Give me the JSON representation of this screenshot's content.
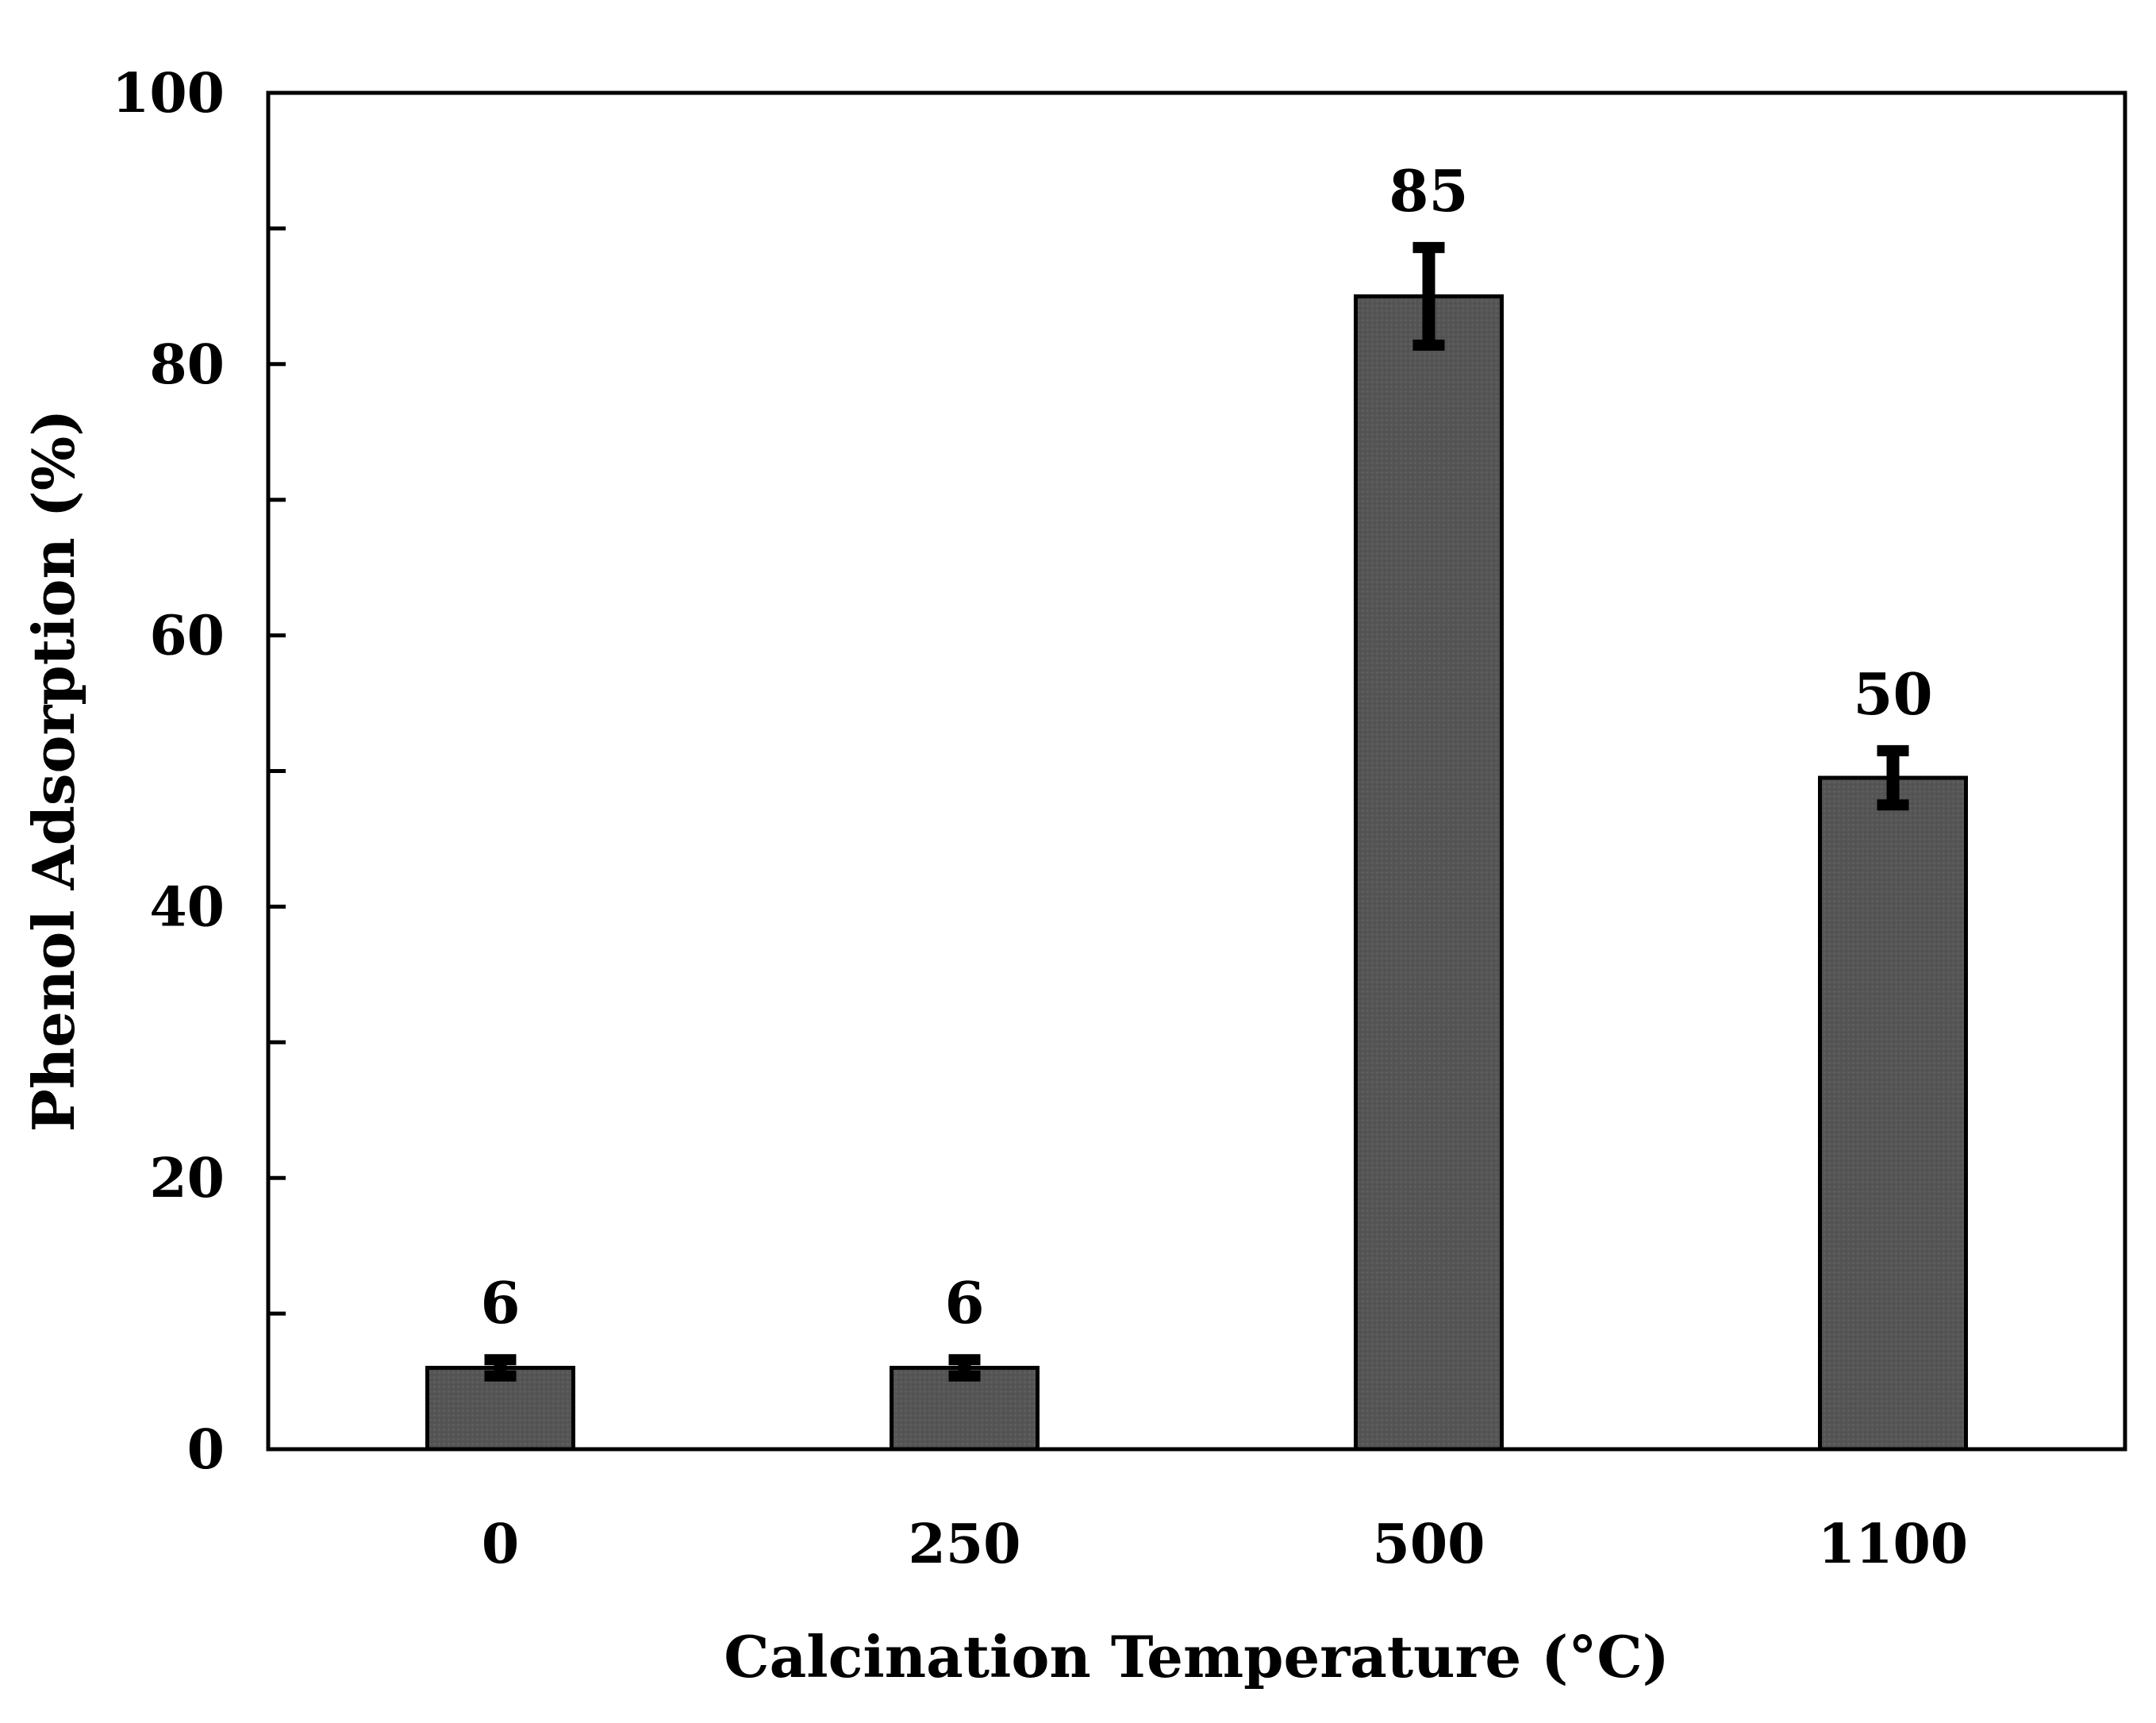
{
  "chart_data": {
    "type": "bar",
    "title": "",
    "xlabel": "Calcination Temperature (°C)",
    "ylabel": "Phenol Adsorption (%)",
    "categories": [
      "0",
      "250",
      "500",
      "1100"
    ],
    "values": [
      6,
      6,
      85,
      49.5
    ],
    "value_labels": [
      "6",
      "6",
      "85",
      "50"
    ],
    "errors": [
      0.6,
      0.6,
      3.6,
      2.0
    ],
    "ylim": [
      0,
      100
    ],
    "yticks": [
      0,
      20,
      40,
      60,
      80,
      100
    ],
    "ytick_labels": [
      "0",
      "20",
      "40",
      "60",
      "80",
      "100"
    ],
    "minor_yticks": [
      10,
      30,
      50,
      70,
      90
    ],
    "grid": false,
    "legend": "none",
    "bar_color": "#555555",
    "bar_edge_color": "#000000",
    "error_bar_color": "#000000"
  }
}
